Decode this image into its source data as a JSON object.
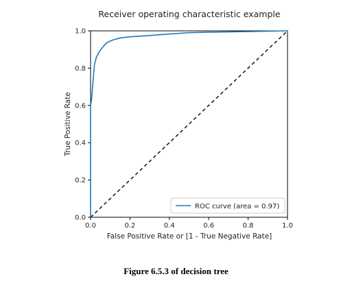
{
  "chart_data": {
    "type": "line",
    "title": "Receiver operating characteristic example",
    "xlabel": "False Positive Rate or [1 - True Negative Rate]",
    "ylabel": "True Positive Rate",
    "xlim": [
      0.0,
      1.0
    ],
    "ylim": [
      0.0,
      1.0
    ],
    "xticks": [
      "0.0",
      "0.2",
      "0.4",
      "0.6",
      "0.8",
      "1.0"
    ],
    "yticks": [
      "0.0",
      "0.2",
      "0.4",
      "0.6",
      "0.8",
      "1.0"
    ],
    "grid": false,
    "legend_position": "lower-right",
    "series": [
      {
        "name": "ROC curve (area = 0.97)",
        "color": "#1f77b4",
        "x": [
          0.0,
          0.0,
          0.005,
          0.01,
          0.015,
          0.02,
          0.03,
          0.045,
          0.06,
          0.08,
          0.11,
          0.15,
          0.2,
          0.3,
          0.4,
          0.5,
          0.6,
          0.8,
          1.0
        ],
        "y": [
          0.0,
          0.6,
          0.63,
          0.7,
          0.76,
          0.82,
          0.86,
          0.89,
          0.91,
          0.935,
          0.95,
          0.962,
          0.968,
          0.975,
          0.983,
          0.99,
          0.993,
          0.996,
          1.0
        ]
      }
    ],
    "reference_line": {
      "x": [
        0.0,
        1.0
      ],
      "y": [
        0.0,
        1.0
      ],
      "style": "dashed",
      "color": "#000000"
    }
  },
  "caption": "Figure 6.5.3 of decision tree"
}
